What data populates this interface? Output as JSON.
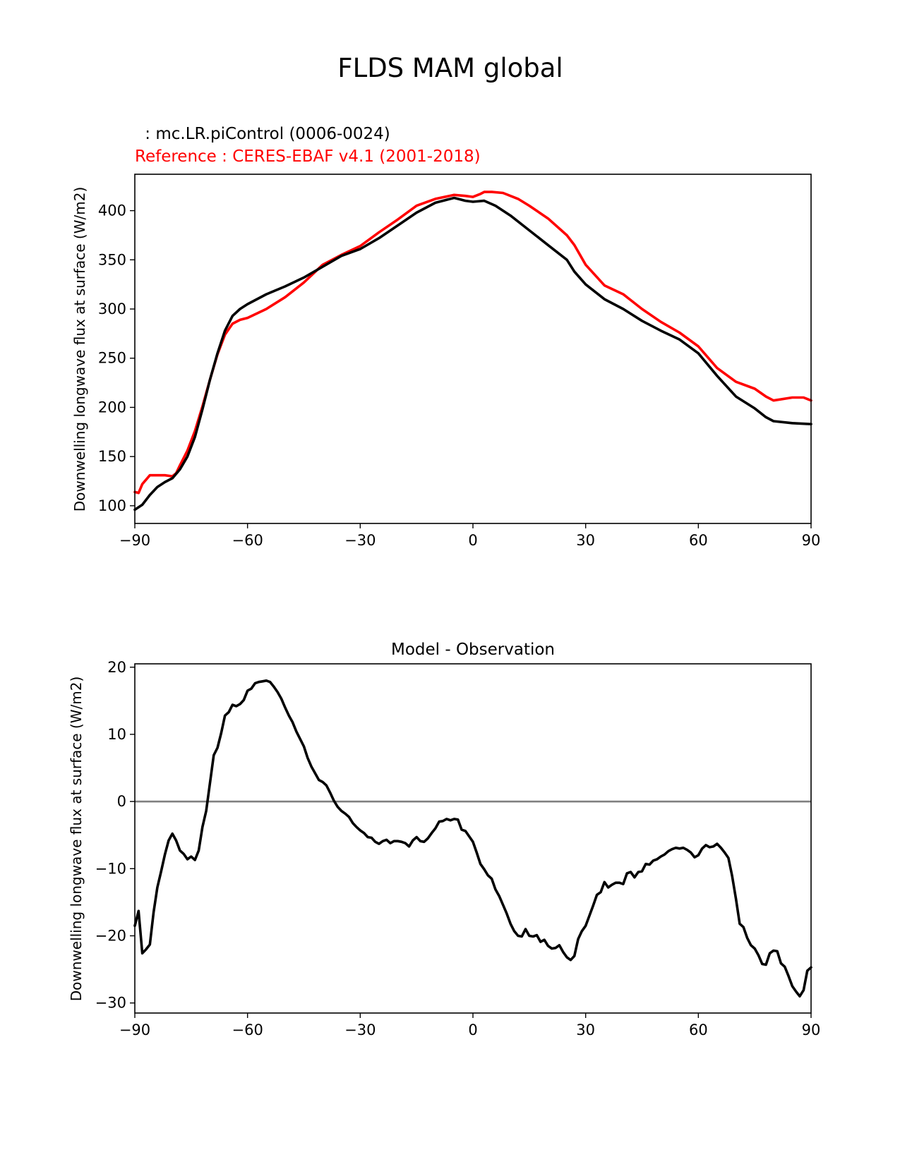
{
  "figure": {
    "suptitle": "FLDS MAM global"
  },
  "colors": {
    "test": "#000000",
    "reference": "#ff0000",
    "zero_line": "#808080",
    "axes": "#000000"
  },
  "chart_data": [
    {
      "type": "line",
      "model_label": " : mc.LR.piControl (0006-0024)",
      "reference_label": "Reference : CERES-EBAF v4.1 (2001-2018)",
      "ylabel": "Downwelling longwave flux at surface (W/m2)",
      "xlim": [
        -90,
        90
      ],
      "ylim": [
        82,
        437
      ],
      "xticks": [
        "−90",
        "−60",
        "−30",
        "0",
        "30",
        "60",
        "90"
      ],
      "xtick_values": [
        -90,
        -60,
        -30,
        0,
        30,
        60,
        90
      ],
      "yticks": [
        "100",
        "150",
        "200",
        "250",
        "300",
        "350",
        "400"
      ],
      "ytick_values": [
        100,
        150,
        200,
        250,
        300,
        350,
        400
      ],
      "series": [
        {
          "role": "test",
          "x": [
            -90,
            -88,
            -86,
            -84,
            -82,
            -80,
            -78,
            -76,
            -74,
            -72,
            -70,
            -68,
            -66,
            -64,
            -62,
            -60,
            -55,
            -50,
            -45,
            -40,
            -35,
            -30,
            -25,
            -20,
            -15,
            -10,
            -5,
            -2,
            0,
            3,
            6,
            10,
            15,
            20,
            25,
            27,
            30,
            35,
            40,
            45,
            50,
            55,
            60,
            65,
            70,
            75,
            78,
            80,
            85,
            90
          ],
          "y": [
            96,
            101,
            111,
            119,
            124,
            128,
            137,
            150,
            170,
            198,
            228,
            255,
            278,
            293,
            300,
            305,
            315,
            323,
            332,
            343,
            354,
            361,
            372,
            385,
            398,
            408,
            413,
            410,
            409,
            410,
            405,
            395,
            380,
            365,
            350,
            338,
            325,
            310,
            300,
            288,
            278,
            269,
            255,
            232,
            211,
            199,
            190,
            186,
            184,
            183
          ]
        },
        {
          "role": "reference",
          "x": [
            -90,
            -89,
            -88,
            -86,
            -84,
            -82,
            -80,
            -79,
            -78,
            -76,
            -74,
            -72,
            -70,
            -68,
            -66,
            -64,
            -62,
            -60,
            -55,
            -50,
            -45,
            -40,
            -35,
            -30,
            -25,
            -20,
            -15,
            -10,
            -5,
            -2,
            0,
            2,
            3,
            5,
            8,
            12,
            15,
            20,
            25,
            27,
            30,
            35,
            40,
            45,
            50,
            55,
            60,
            65,
            70,
            75,
            78,
            80,
            85,
            88,
            90
          ],
          "y": [
            114,
            113,
            122,
            131,
            131,
            131,
            130,
            133,
            141,
            156,
            176,
            201,
            228,
            254,
            274,
            285,
            289,
            291,
            300,
            312,
            327,
            345,
            355,
            364,
            378,
            391,
            405,
            412,
            416,
            415,
            414,
            417,
            419,
            419,
            418,
            412,
            405,
            392,
            375,
            365,
            345,
            324,
            315,
            300,
            287,
            276,
            262,
            240,
            226,
            219,
            211,
            207,
            210,
            210,
            207
          ]
        }
      ]
    },
    {
      "type": "line",
      "title": "Model - Observation",
      "ylabel": "Downwelling longwave flux at surface (W/m2)",
      "xlim": [
        -90,
        90
      ],
      "ylim": [
        -31.5,
        20.5
      ],
      "xticks": [
        "−90",
        "−60",
        "−30",
        "0",
        "30",
        "60",
        "90"
      ],
      "xtick_values": [
        -90,
        -60,
        -30,
        0,
        30,
        60,
        90
      ],
      "yticks": [
        "−30",
        "−20",
        "−10",
        "0",
        "10",
        "20"
      ],
      "ytick_values": [
        -30,
        -20,
        -10,
        0,
        10,
        20
      ],
      "zero_line": 0,
      "series": [
        {
          "role": "difference",
          "x": [
            -90,
            -89,
            -88,
            -87,
            -86,
            -85,
            -84,
            -83,
            -82,
            -81,
            -80,
            -79,
            -78,
            -77,
            -76,
            -75,
            -74,
            -73,
            -72,
            -71,
            -70,
            -69,
            -68,
            -67,
            -66,
            -65,
            -64,
            -63,
            -62,
            -61,
            -60,
            -59,
            -58,
            -57,
            -56,
            -55,
            -54,
            -53,
            -52,
            -51,
            -50,
            -49,
            -48,
            -47,
            -46,
            -45,
            -44,
            -43,
            -42,
            -41,
            -40,
            -39,
            -38,
            -37,
            -36,
            -35,
            -34,
            -33,
            -32,
            -31,
            -30,
            -29,
            -28,
            -27,
            -26,
            -25,
            -24,
            -23,
            -22,
            -21,
            -20,
            -19,
            -18,
            -17,
            -16,
            -15,
            -14,
            -13,
            -12,
            -11,
            -10,
            -9,
            -8,
            -7,
            -6,
            -5,
            -4,
            -3,
            -2,
            -1,
            0,
            1,
            2,
            3,
            4,
            5,
            6,
            7,
            8,
            9,
            10,
            11,
            12,
            13,
            14,
            15,
            16,
            17,
            18,
            19,
            20,
            21,
            22,
            23,
            24,
            25,
            26,
            27,
            28,
            29,
            30,
            31,
            32,
            33,
            34,
            35,
            36,
            37,
            38,
            39,
            40,
            41,
            42,
            43,
            44,
            45,
            46,
            47,
            48,
            49,
            50,
            51,
            52,
            53,
            54,
            55,
            56,
            57,
            58,
            59,
            60,
            61,
            62,
            63,
            64,
            65,
            66,
            67,
            68,
            69,
            70,
            71,
            72,
            73,
            74,
            75,
            76,
            77,
            78,
            79,
            80,
            81,
            82,
            83,
            84,
            85,
            86,
            87,
            88,
            89,
            90
          ],
          "y": [
            -18.5,
            -16.3,
            -22.6,
            -22.0,
            -21.3,
            -16.5,
            -12.8,
            -10.4,
            -7.9,
            -5.8,
            -4.8,
            -5.8,
            -7.3,
            -7.8,
            -8.6,
            -8.2,
            -8.7,
            -7.3,
            -3.8,
            -1.4,
            2.7,
            6.9,
            8.0,
            10.2,
            12.8,
            13.3,
            14.4,
            14.2,
            14.5,
            15.1,
            16.5,
            16.8,
            17.6,
            17.8,
            17.9,
            18.0,
            17.8,
            17.1,
            16.3,
            15.3,
            14.0,
            12.8,
            11.8,
            10.4,
            9.3,
            8.2,
            6.5,
            5.2,
            4.2,
            3.2,
            2.9,
            2.4,
            1.3,
            0.1,
            -0.8,
            -1.4,
            -1.8,
            -2.3,
            -3.2,
            -3.8,
            -4.3,
            -4.7,
            -5.3,
            -5.4,
            -6.0,
            -6.3,
            -5.9,
            -5.7,
            -6.2,
            -5.9,
            -5.9,
            -6.0,
            -6.2,
            -6.7,
            -5.8,
            -5.3,
            -5.9,
            -6.0,
            -5.5,
            -4.7,
            -4.0,
            -3.0,
            -2.9,
            -2.6,
            -2.8,
            -2.6,
            -2.7,
            -4.2,
            -4.4,
            -5.2,
            -6.0,
            -7.6,
            -9.3,
            -10.1,
            -11.0,
            -11.5,
            -13.1,
            -14.1,
            -15.4,
            -16.7,
            -18.2,
            -19.3,
            -20.0,
            -20.1,
            -19.0,
            -20.0,
            -20.1,
            -19.9,
            -20.9,
            -20.6,
            -21.5,
            -21.9,
            -21.8,
            -21.4,
            -22.4,
            -23.2,
            -23.6,
            -23.0,
            -20.5,
            -19.3,
            -18.5,
            -17.0,
            -15.5,
            -13.9,
            -13.5,
            -12.0,
            -12.8,
            -12.4,
            -12.1,
            -12.1,
            -12.3,
            -10.7,
            -10.5,
            -11.3,
            -10.5,
            -10.4,
            -9.3,
            -9.4,
            -8.8,
            -8.6,
            -8.2,
            -7.9,
            -7.4,
            -7.1,
            -6.9,
            -7.0,
            -6.9,
            -7.2,
            -7.6,
            -8.3,
            -8.0,
            -7.0,
            -6.5,
            -6.8,
            -6.7,
            -6.3,
            -6.9,
            -7.6,
            -8.4,
            -11.1,
            -14.5,
            -18.2,
            -18.7,
            -20.3,
            -21.4,
            -21.9,
            -22.9,
            -24.2,
            -24.3,
            -22.6,
            -22.2,
            -22.3,
            -24.1,
            -24.6,
            -26.0,
            -27.5,
            -28.3,
            -29.0,
            -28.1,
            -25.2,
            -24.7
          ]
        }
      ]
    }
  ]
}
